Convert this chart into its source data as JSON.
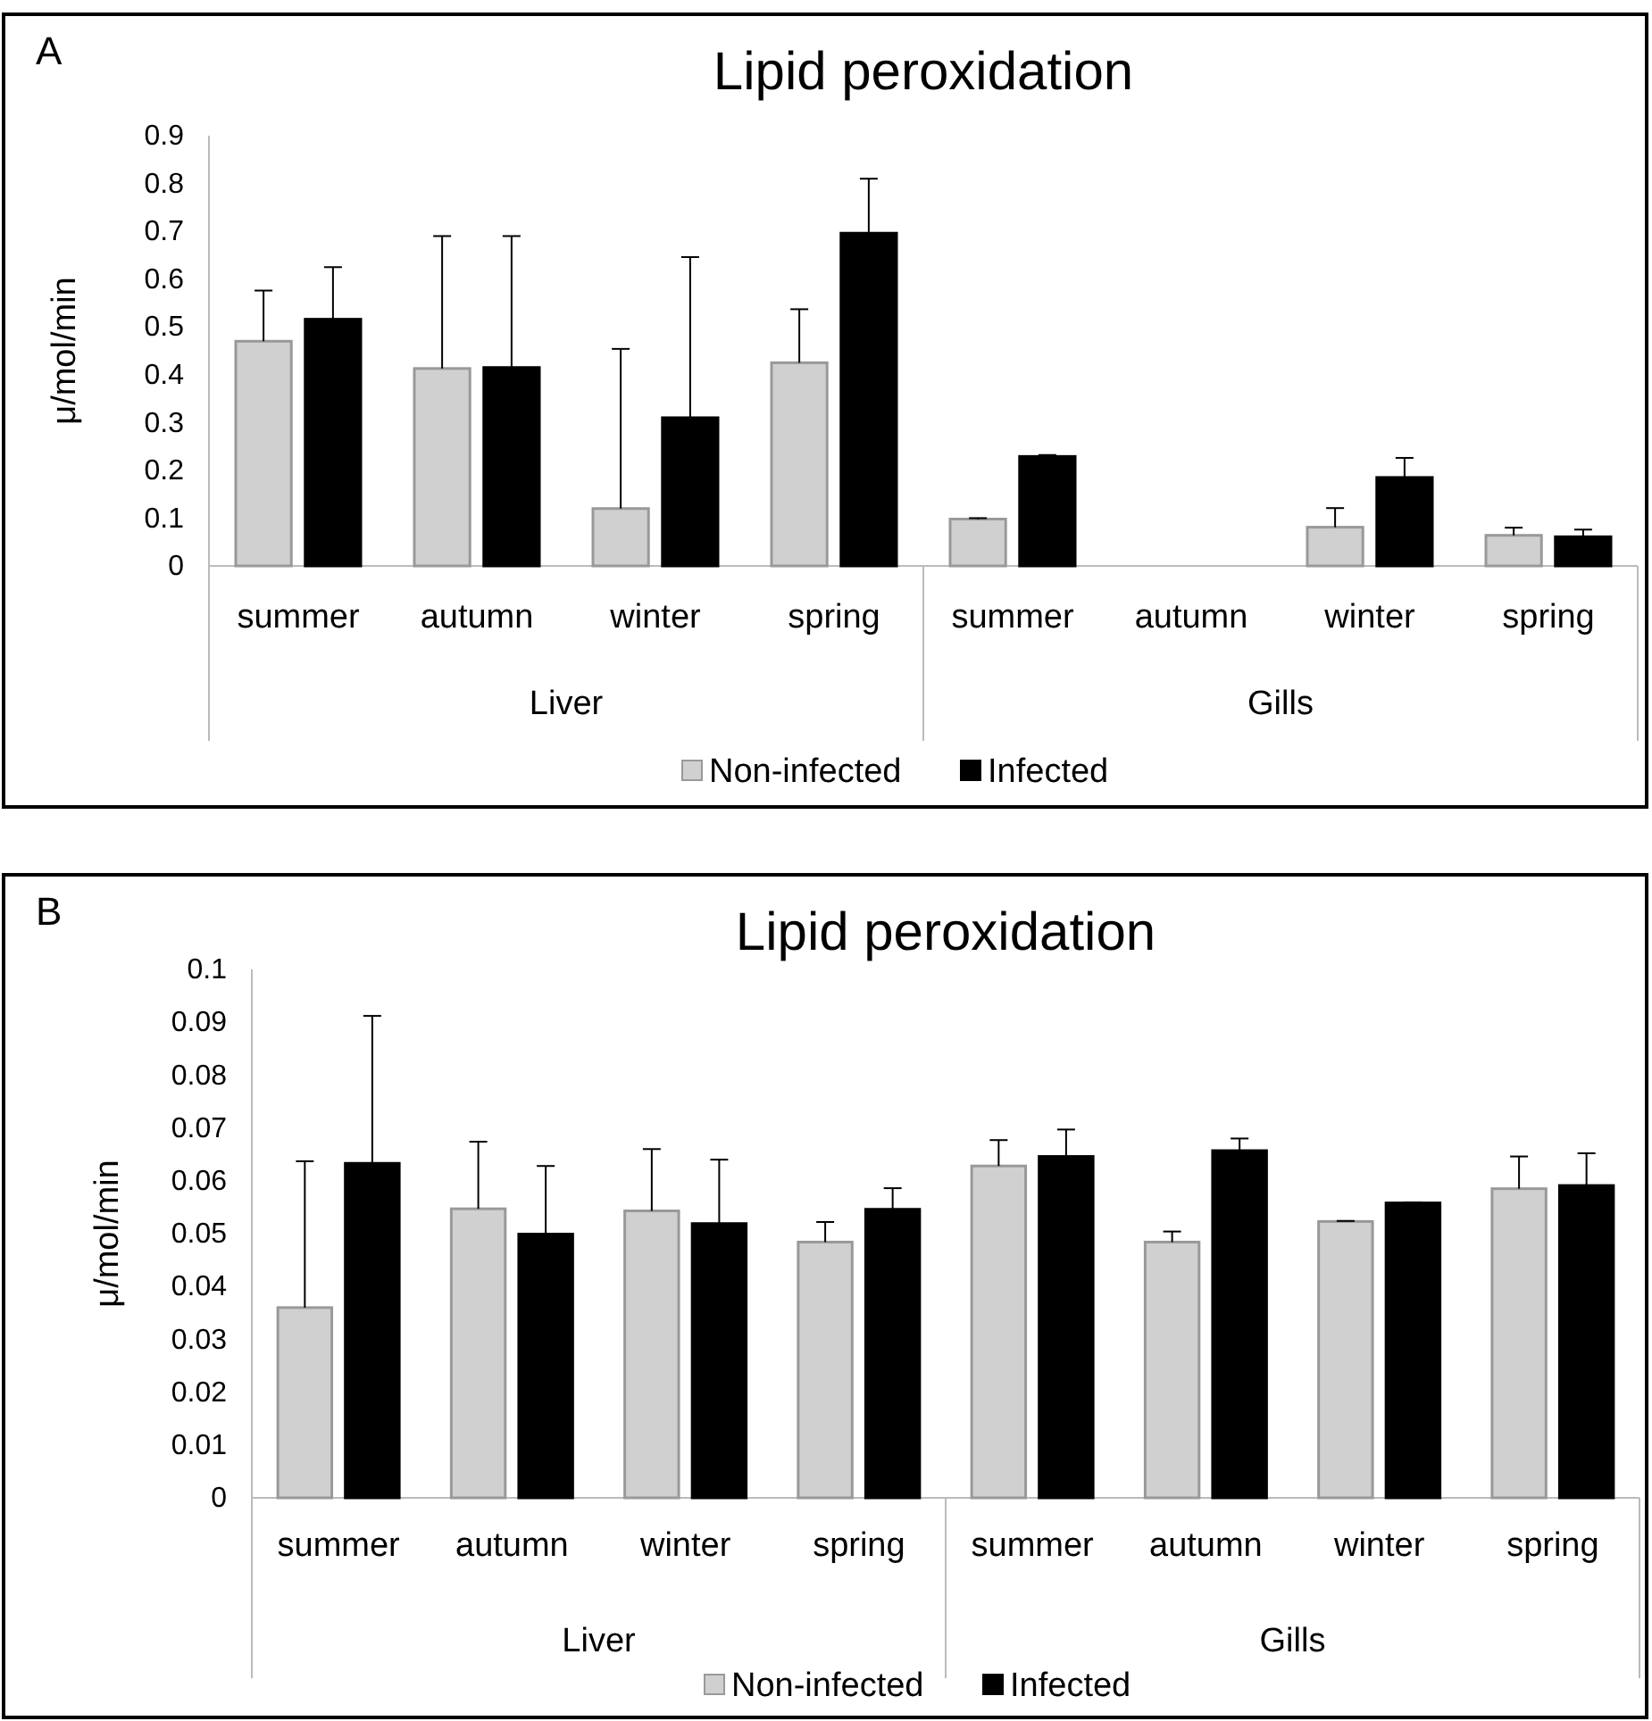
{
  "chart_data": [
    {
      "type": "bar",
      "title": "Lipid peroxidation",
      "ylabel": "μ/mol/min",
      "annotations": [
        "A",
        "Liver",
        "Gills"
      ],
      "categories": [
        "summer",
        "autumn",
        "winter",
        "spring",
        "summer",
        "autumn",
        "winter",
        "spring"
      ],
      "series": [
        {
          "name": "Non-infected",
          "color": "#d0d0d0",
          "values": [
            0.47,
            0.413,
            0.12,
            0.425,
            0.098,
            null,
            0.081,
            0.064
          ],
          "errors": [
            [
              0.47,
              0.576
            ],
            [
              0.413,
              0.69
            ],
            [
              0.12,
              0.454
            ],
            [
              0.425,
              0.537
            ],
            [
              0.098,
              0.1
            ],
            null,
            [
              0.081,
              0.121
            ],
            [
              0.064,
              0.08
            ]
          ]
        },
        {
          "name": "Infected",
          "color": "#000000",
          "values": [
            0.516,
            0.415,
            0.31,
            0.696,
            0.229,
            null,
            0.185,
            0.061
          ],
          "errors": [
            [
              0.516,
              0.625
            ],
            [
              0.415,
              0.69
            ],
            [
              0.31,
              0.646
            ],
            [
              0.696,
              0.81
            ],
            [
              0.229,
              0.232
            ],
            null,
            [
              0.185,
              0.226
            ],
            [
              0.061,
              0.076
            ]
          ]
        }
      ],
      "ylim": [
        0,
        0.9
      ],
      "yticks": [
        0,
        0.1,
        0.2,
        0.3,
        0.4,
        0.5,
        0.6,
        0.7,
        0.8,
        0.9
      ],
      "legend": "bottom"
    },
    {
      "type": "bar",
      "title": "Lipid peroxidation",
      "ylabel": "μ/mol/min",
      "annotations": [
        "B",
        "Liver",
        "Gills"
      ],
      "categories": [
        "summer",
        "autumn",
        "winter",
        "spring",
        "summer",
        "autumn",
        "winter",
        "spring"
      ],
      "series": [
        {
          "name": "Non-infected",
          "color": "#d0d0d0",
          "values": [
            0.036,
            0.0547,
            0.0543,
            0.0484,
            0.0628,
            0.0484,
            0.0523,
            0.0585
          ],
          "errors": [
            [
              0.036,
              0.0637
            ],
            [
              0.0547,
              0.0674
            ],
            [
              0.0543,
              0.066
            ],
            [
              0.0484,
              0.0522
            ],
            [
              0.0628,
              0.0677
            ],
            [
              0.0484,
              0.0504
            ],
            [
              0.0523,
              0.0524
            ],
            [
              0.0585,
              0.0646
            ]
          ]
        },
        {
          "name": "Infected",
          "color": "#000000",
          "values": [
            0.0633,
            0.0499,
            0.0519,
            0.0546,
            0.0646,
            0.0657,
            0.0558,
            0.0591
          ],
          "errors": [
            [
              0.0633,
              0.0912
            ],
            [
              0.0499,
              0.0628
            ],
            [
              0.0519,
              0.064
            ],
            [
              0.0546,
              0.0586
            ],
            [
              0.0646,
              0.0697
            ],
            [
              0.0657,
              0.068
            ],
            [
              0.0558,
              0.0559
            ],
            [
              0.0591,
              0.0652
            ]
          ]
        }
      ],
      "ylim": [
        0,
        0.1
      ],
      "yticks": [
        0,
        0.01,
        0.02,
        0.03,
        0.04,
        0.05,
        0.06,
        0.07,
        0.08,
        0.09,
        0.1
      ],
      "legend": "bottom"
    }
  ]
}
